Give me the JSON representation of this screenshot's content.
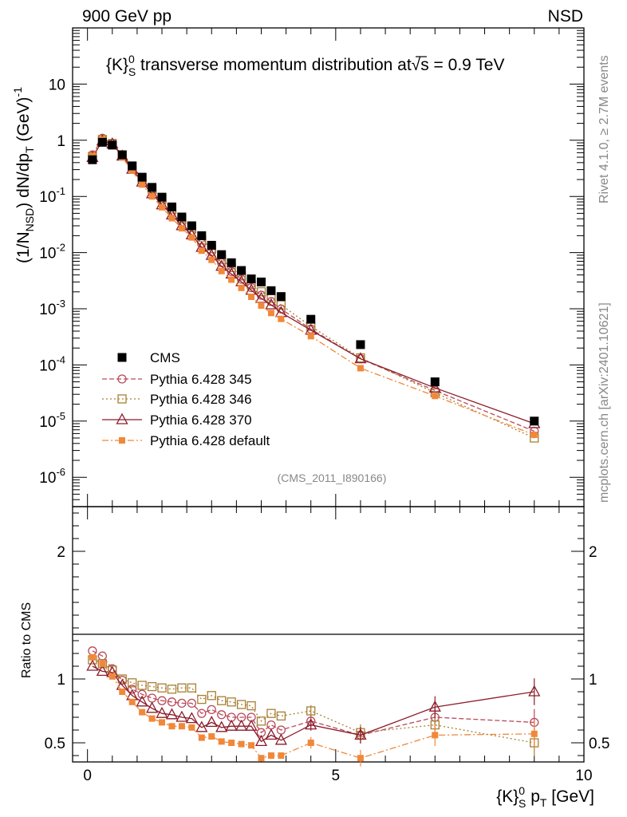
{
  "header": {
    "left": "900 GeV pp",
    "right": "NSD",
    "side_rivet": "Rivet 4.1.0, ≥ 2.7M events",
    "side_site": "mcplots.cern.ch [arXiv:2401.10621]"
  },
  "chart_data": {
    "type": "scatter",
    "title_prefix": "{K}",
    "title_sub": "S",
    "title_sup": "0",
    "title_rest": " transverse momentum distribution at",
    "title_sqrt": "√s",
    "title_value": " = 0.9 TeV",
    "analysis_id": "(CMS_2011_I890166)",
    "ylabel": "(1/N_NSD) dN/dp_T (GeV)^-1",
    "ratio_ylabel": "Ratio to CMS",
    "xlabel": "{K}_S^0 p_T [GeV]",
    "xlim": [
      -0.3,
      10
    ],
    "ylim_log": [
      3e-07,
      100
    ],
    "ratio_ylim": [
      0.35,
      2.35
    ],
    "x_ticks": [
      "0",
      "5",
      "10"
    ],
    "y_ticks": [
      "10^-6",
      "10^-5",
      "10^-4",
      "10^-3",
      "10^-2",
      "10^-1",
      "1",
      "10"
    ],
    "ratio_ticks": [
      "0.5",
      "1",
      "2"
    ],
    "x": [
      0.1,
      0.3,
      0.5,
      0.7,
      0.9,
      1.1,
      1.3,
      1.5,
      1.7,
      1.9,
      2.1,
      2.3,
      2.5,
      2.7,
      2.9,
      3.1,
      3.3,
      3.5,
      3.7,
      3.9,
      4.5,
      5.5,
      7.0,
      9.0
    ],
    "data": {
      "name": "CMS",
      "values": [
        0.45,
        0.92,
        0.82,
        0.55,
        0.35,
        0.22,
        0.145,
        0.097,
        0.065,
        0.043,
        0.03,
        0.02,
        0.0135,
        0.0092,
        0.0066,
        0.0048,
        0.0034,
        0.003,
        0.0021,
        0.00165,
        0.00065,
        0.00023,
        5e-05,
        1e-05
      ]
    },
    "series": [
      {
        "name": "Pythia 6.428 345",
        "color": "#b94a5b",
        "ratio": [
          1.22,
          1.18,
          1.08,
          0.99,
          0.92,
          0.88,
          0.85,
          0.83,
          0.82,
          0.81,
          0.81,
          0.73,
          0.76,
          0.72,
          0.7,
          0.7,
          0.7,
          0.58,
          0.64,
          0.6,
          0.67,
          0.56,
          0.7,
          0.66
        ]
      },
      {
        "name": "Pythia 6.428 346",
        "color": "#a87f34",
        "ratio": [
          1.15,
          1.12,
          1.07,
          1.0,
          0.97,
          0.95,
          0.94,
          0.93,
          0.92,
          0.93,
          0.93,
          0.84,
          0.87,
          0.83,
          0.82,
          0.8,
          0.79,
          0.67,
          0.73,
          0.71,
          0.75,
          0.58,
          0.64,
          0.5
        ]
      },
      {
        "name": "Pythia 6.428 370",
        "color": "#8b1c2a",
        "ratio": [
          1.1,
          1.06,
          1.05,
          0.95,
          0.87,
          0.82,
          0.77,
          0.73,
          0.72,
          0.7,
          0.69,
          0.62,
          0.66,
          0.62,
          0.63,
          0.63,
          0.63,
          0.51,
          0.56,
          0.52,
          0.64,
          0.56,
          0.78,
          0.9
        ]
      },
      {
        "name": "Pythia 6.428 default",
        "color": "#f0883a",
        "ratio": [
          1.17,
          1.12,
          1.02,
          0.9,
          0.82,
          0.74,
          0.69,
          0.66,
          0.63,
          0.63,
          0.62,
          0.54,
          0.55,
          0.51,
          0.5,
          0.49,
          0.48,
          0.38,
          0.4,
          0.4,
          0.5,
          0.38,
          0.56,
          0.57
        ]
      }
    ]
  }
}
